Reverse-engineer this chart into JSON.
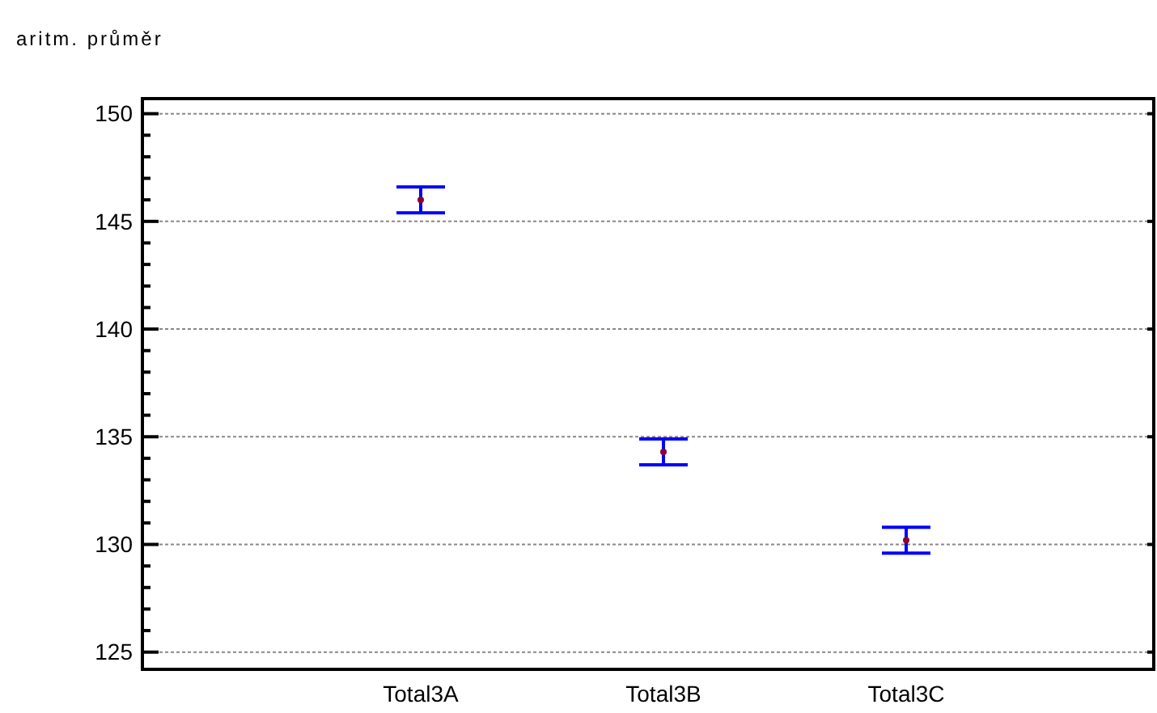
{
  "chart_data": {
    "type": "scatter",
    "title": "aritm. průměr",
    "categories": [
      "Total3A",
      "Total3B",
      "Total3C"
    ],
    "series": [
      {
        "color": "#8b0033",
        "values": [
          146.0,
          134.3,
          130.2
        ],
        "errors": [
          [
            145.4,
            146.6
          ],
          [
            133.7,
            134.9
          ],
          [
            129.6,
            130.8
          ]
        ]
      }
    ],
    "ylim": [
      124.2,
      150.7
    ],
    "yticks": [
      {
        "value": 125,
        "label": "125"
      },
      {
        "value": 126,
        "label": null
      },
      {
        "value": 127,
        "label": null
      },
      {
        "value": 128,
        "label": null
      },
      {
        "value": 129,
        "label": null
      },
      {
        "value": 130,
        "label": "130"
      },
      {
        "value": 131,
        "label": null
      },
      {
        "value": 132,
        "label": null
      },
      {
        "value": 133,
        "label": null
      },
      {
        "value": 134,
        "label": null
      },
      {
        "value": 135,
        "label": "135"
      },
      {
        "value": 136,
        "label": null
      },
      {
        "value": 137,
        "label": null
      },
      {
        "value": 138,
        "label": null
      },
      {
        "value": 139,
        "label": null
      },
      {
        "value": 140,
        "label": "140"
      },
      {
        "value": 141,
        "label": null
      },
      {
        "value": 142,
        "label": null
      },
      {
        "value": 143,
        "label": null
      },
      {
        "value": 144,
        "label": null
      },
      {
        "value": 145,
        "label": "145"
      },
      {
        "value": 146,
        "label": null
      },
      {
        "value": 147,
        "label": null
      },
      {
        "value": 148,
        "label": null
      },
      {
        "value": 149,
        "label": null
      },
      {
        "value": 150,
        "label": "150"
      }
    ],
    "grid": "y",
    "marker": "circle"
  }
}
